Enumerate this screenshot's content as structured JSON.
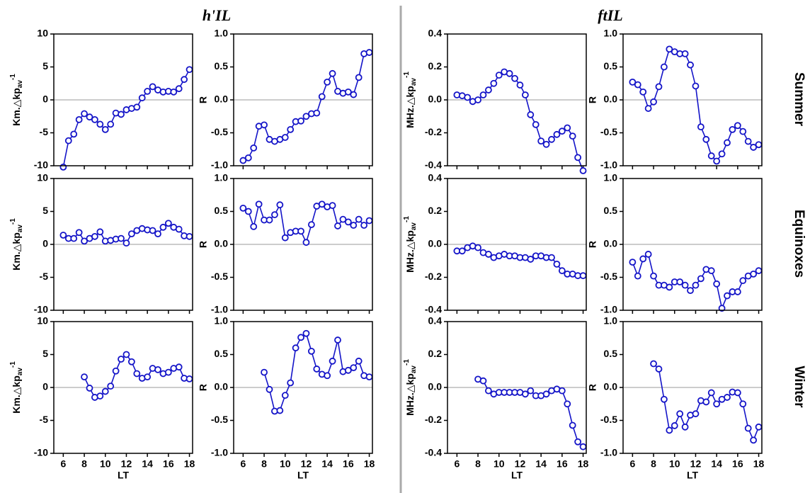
{
  "figure": {
    "column_titles": [
      "h'IL",
      "ftIL"
    ],
    "row_titles": [
      "Summer",
      "Equinoxes",
      "Winter"
    ]
  },
  "chart_data": [
    {
      "type": "line",
      "color": "#1414c8",
      "x": [
        6,
        6.5,
        7,
        7.5,
        8,
        8.5,
        9,
        9.5,
        10,
        10.5,
        11,
        11.5,
        12,
        12.5,
        13,
        13.5,
        14,
        14.5,
        15,
        15.5,
        16,
        16.5,
        17,
        17.5,
        18
      ],
      "values": [
        -10.2,
        -6.2,
        -5.2,
        -3.0,
        -2.1,
        -2.6,
        -3.0,
        -3.7,
        -4.5,
        -3.7,
        -2.0,
        -2.2,
        -1.5,
        -1.3,
        -1.1,
        0.3,
        1.3,
        2.0,
        1.5,
        1.2,
        1.3,
        1.2,
        1.7,
        3.1,
        4.6
      ],
      "ylabel": {
        "text": "Km.△kp",
        "sub": "av",
        "sup": "-1"
      },
      "ylim": [
        -10,
        10
      ],
      "yticks": [
        -10,
        -5,
        0,
        5,
        10
      ],
      "xlim": [
        5.1,
        18.3
      ],
      "xticks": [
        6,
        8,
        10,
        12,
        14,
        16,
        18
      ],
      "show_xtick_labels": false,
      "zero_line": true
    },
    {
      "type": "line",
      "color": "#1414c8",
      "x": [
        6,
        6.5,
        7,
        7.5,
        8,
        8.5,
        9,
        9.5,
        10,
        10.5,
        11,
        11.5,
        12,
        12.5,
        13,
        13.5,
        14,
        14.5,
        15,
        15.5,
        16,
        16.5,
        17,
        17.5,
        18
      ],
      "values": [
        -0.92,
        -0.88,
        -0.73,
        -0.4,
        -0.38,
        -0.6,
        -0.63,
        -0.6,
        -0.57,
        -0.45,
        -0.33,
        -0.32,
        -0.25,
        -0.21,
        -0.2,
        0.05,
        0.27,
        0.4,
        0.13,
        0.1,
        0.12,
        0.08,
        0.34,
        0.7,
        0.72
      ],
      "ylabel": "R",
      "ylim": [
        -1,
        1
      ],
      "yticks": [
        {
          "value": -1,
          "label": "-1.0"
        },
        -0.5,
        {
          "value": 0,
          "label": "0.0"
        },
        0.5,
        {
          "value": 1,
          "label": "1.0"
        }
      ],
      "xlim": [
        5.1,
        18.3
      ],
      "xticks": [
        6,
        8,
        10,
        12,
        14,
        16,
        18
      ],
      "show_xtick_labels": false,
      "zero_line": true
    },
    {
      "type": "line",
      "color": "#1414c8",
      "x": [
        6,
        6.5,
        7,
        7.5,
        8,
        8.5,
        9,
        9.5,
        10,
        10.5,
        11,
        11.5,
        12,
        12.5,
        13,
        13.5,
        14,
        14.5,
        15,
        15.5,
        16,
        16.5,
        17,
        17.5,
        18
      ],
      "values": [
        0.03,
        0.025,
        0.015,
        -0.01,
        0.0,
        0.03,
        0.06,
        0.1,
        0.15,
        0.17,
        0.16,
        0.13,
        0.09,
        0.03,
        -0.09,
        -0.15,
        -0.25,
        -0.27,
        -0.24,
        -0.21,
        -0.19,
        -0.17,
        -0.22,
        -0.35,
        -0.43
      ],
      "ylabel": {
        "text": "MHz.△kp",
        "sub": "av",
        "sup": "-1"
      },
      "ylim": [
        -0.4,
        0.4
      ],
      "yticks": [
        -0.4,
        -0.2,
        {
          "value": 0,
          "label": "0.0"
        },
        0.2,
        0.4
      ],
      "xlim": [
        5.1,
        18.3
      ],
      "xticks": [
        6,
        8,
        10,
        12,
        14,
        16,
        18
      ],
      "show_xtick_labels": false,
      "zero_line": true
    },
    {
      "type": "line",
      "color": "#1414c8",
      "x": [
        6,
        6.5,
        7,
        7.5,
        8,
        8.5,
        9,
        9.5,
        10,
        10.5,
        11,
        11.5,
        12,
        12.5,
        13,
        13.5,
        14,
        14.5,
        15,
        15.5,
        16,
        16.5,
        17,
        17.5,
        18
      ],
      "values": [
        0.27,
        0.23,
        0.12,
        -0.13,
        -0.03,
        0.2,
        0.5,
        0.77,
        0.73,
        0.7,
        0.7,
        0.53,
        0.21,
        -0.41,
        -0.6,
        -0.85,
        -0.93,
        -0.82,
        -0.65,
        -0.45,
        -0.39,
        -0.48,
        -0.63,
        -0.72,
        -0.68
      ],
      "ylabel": "R",
      "ylim": [
        -1,
        1
      ],
      "yticks": [
        {
          "value": -1,
          "label": "-1.0"
        },
        -0.5,
        {
          "value": 0,
          "label": "0.0"
        },
        0.5,
        {
          "value": 1,
          "label": "1.0"
        }
      ],
      "xlim": [
        5.1,
        18.3
      ],
      "xticks": [
        6,
        8,
        10,
        12,
        14,
        16,
        18
      ],
      "show_xtick_labels": false,
      "zero_line": true
    },
    {
      "type": "line",
      "color": "#1414c8",
      "x": [
        6,
        6.5,
        7,
        7.5,
        8,
        8.5,
        9,
        9.5,
        10,
        10.5,
        11,
        11.5,
        12,
        12.5,
        13,
        13.5,
        14,
        14.5,
        15,
        15.5,
        16,
        16.5,
        17,
        17.5,
        18
      ],
      "values": [
        1.4,
        0.9,
        0.9,
        1.8,
        0.5,
        0.9,
        1.2,
        1.9,
        0.5,
        0.6,
        0.8,
        0.9,
        0.2,
        1.6,
        2.1,
        2.4,
        2.2,
        2.1,
        1.6,
        2.6,
        3.2,
        2.6,
        2.3,
        1.3,
        1.2
      ],
      "ylabel": {
        "text": "Km.△kp",
        "sub": "av",
        "sup": "-1"
      },
      "ylim": [
        -10,
        10
      ],
      "yticks": [
        -10,
        -5,
        0,
        5,
        10
      ],
      "xlim": [
        5.1,
        18.3
      ],
      "xticks": [
        6,
        8,
        10,
        12,
        14,
        16,
        18
      ],
      "show_xtick_labels": false,
      "zero_line": true
    },
    {
      "type": "line",
      "color": "#1414c8",
      "x": [
        6,
        6.5,
        7,
        7.5,
        8,
        8.5,
        9,
        9.5,
        10,
        10.5,
        11,
        11.5,
        12,
        12.5,
        13,
        13.5,
        14,
        14.5,
        15,
        15.5,
        16,
        16.5,
        17,
        17.5,
        18
      ],
      "values": [
        0.55,
        0.5,
        0.27,
        0.61,
        0.37,
        0.37,
        0.45,
        0.6,
        0.1,
        0.18,
        0.2,
        0.2,
        0.03,
        0.3,
        0.58,
        0.61,
        0.57,
        0.59,
        0.28,
        0.38,
        0.34,
        0.29,
        0.38,
        0.29,
        0.36
      ],
      "ylabel": "R",
      "ylim": [
        -1,
        1
      ],
      "yticks": [
        {
          "value": -1,
          "label": "-1.0"
        },
        -0.5,
        {
          "value": 0,
          "label": "0.0"
        },
        0.5,
        {
          "value": 1,
          "label": "1.0"
        }
      ],
      "xlim": [
        5.1,
        18.3
      ],
      "xticks": [
        6,
        8,
        10,
        12,
        14,
        16,
        18
      ],
      "show_xtick_labels": false,
      "zero_line": true
    },
    {
      "type": "line",
      "color": "#1414c8",
      "x": [
        6,
        6.5,
        7,
        7.5,
        8,
        8.5,
        9,
        9.5,
        10,
        10.5,
        11,
        11.5,
        12,
        12.5,
        13,
        13.5,
        14,
        14.5,
        15,
        15.5,
        16,
        16.5,
        17,
        17.5,
        18
      ],
      "values": [
        -0.04,
        -0.04,
        -0.02,
        -0.01,
        -0.02,
        -0.05,
        -0.06,
        -0.08,
        -0.07,
        -0.06,
        -0.07,
        -0.07,
        -0.08,
        -0.08,
        -0.09,
        -0.07,
        -0.07,
        -0.08,
        -0.08,
        -0.12,
        -0.16,
        -0.18,
        -0.18,
        -0.19,
        -0.19
      ],
      "ylabel": {
        "text": "MHz.△kp",
        "sub": "av",
        "sup": "-1"
      },
      "ylim": [
        -0.4,
        0.4
      ],
      "yticks": [
        -0.4,
        -0.2,
        {
          "value": 0,
          "label": "0.0"
        },
        0.2,
        0.4
      ],
      "xlim": [
        5.1,
        18.3
      ],
      "xticks": [
        6,
        8,
        10,
        12,
        14,
        16,
        18
      ],
      "show_xtick_labels": false,
      "zero_line": true
    },
    {
      "type": "line",
      "color": "#1414c8",
      "x": [
        6,
        6.5,
        7,
        7.5,
        8,
        8.5,
        9,
        9.5,
        10,
        10.5,
        11,
        11.5,
        12,
        12.5,
        13,
        13.5,
        14,
        14.5,
        15,
        15.5,
        16,
        16.5,
        17,
        17.5,
        18
      ],
      "values": [
        -0.27,
        -0.48,
        -0.22,
        -0.15,
        -0.48,
        -0.62,
        -0.62,
        -0.65,
        -0.57,
        -0.57,
        -0.62,
        -0.7,
        -0.62,
        -0.52,
        -0.38,
        -0.4,
        -0.6,
        -0.97,
        -0.78,
        -0.72,
        -0.72,
        -0.55,
        -0.48,
        -0.45,
        -0.4
      ],
      "ylabel": "R",
      "ylim": [
        -1,
        1
      ],
      "yticks": [
        {
          "value": -1,
          "label": "-1.0"
        },
        -0.5,
        {
          "value": 0,
          "label": "0.0"
        },
        0.5,
        {
          "value": 1,
          "label": "1.0"
        }
      ],
      "xlim": [
        5.1,
        18.3
      ],
      "xticks": [
        6,
        8,
        10,
        12,
        14,
        16,
        18
      ],
      "show_xtick_labels": false,
      "zero_line": true
    },
    {
      "type": "line",
      "color": "#1414c8",
      "x": [
        6,
        6.5,
        7,
        7.5,
        8,
        8.5,
        9,
        9.5,
        10,
        10.5,
        11,
        11.5,
        12,
        12.5,
        13,
        13.5,
        14,
        14.5,
        15,
        15.5,
        16,
        16.5,
        17,
        17.5,
        18
      ],
      "values": [
        null,
        null,
        null,
        null,
        1.6,
        -0.1,
        -1.5,
        -1.3,
        -0.6,
        0.2,
        2.5,
        4.3,
        5.0,
        3.9,
        2.1,
        1.4,
        1.6,
        2.9,
        2.7,
        2.1,
        2.3,
        2.9,
        3.1,
        1.4,
        1.3
      ],
      "ylabel": {
        "text": "Km.△kp",
        "sub": "av",
        "sup": "-1"
      },
      "ylim": [
        -10,
        10
      ],
      "yticks": [
        -10,
        -5,
        0,
        5,
        10
      ],
      "xlim": [
        5.1,
        18.3
      ],
      "xticks": [
        6,
        8,
        10,
        12,
        14,
        16,
        18
      ],
      "show_xtick_labels": true,
      "xlabel": "LT",
      "zero_line": true
    },
    {
      "type": "line",
      "color": "#1414c8",
      "x": [
        6,
        6.5,
        7,
        7.5,
        8,
        8.5,
        9,
        9.5,
        10,
        10.5,
        11,
        11.5,
        12,
        12.5,
        13,
        13.5,
        14,
        14.5,
        15,
        15.5,
        16,
        16.5,
        17,
        17.5,
        18
      ],
      "values": [
        null,
        null,
        null,
        null,
        0.23,
        -0.03,
        -0.36,
        -0.35,
        -0.12,
        0.07,
        0.6,
        0.76,
        0.82,
        0.55,
        0.28,
        0.2,
        0.18,
        0.4,
        0.72,
        0.24,
        0.26,
        0.3,
        0.4,
        0.18,
        0.16
      ],
      "ylabel": "R",
      "ylim": [
        -1,
        1
      ],
      "yticks": [
        {
          "value": -1,
          "label": "-1.0"
        },
        -0.5,
        {
          "value": 0,
          "label": "0.0"
        },
        0.5,
        {
          "value": 1,
          "label": "1.0"
        }
      ],
      "xlim": [
        5.1,
        18.3
      ],
      "xticks": [
        6,
        8,
        10,
        12,
        14,
        16,
        18
      ],
      "show_xtick_labels": true,
      "xlabel": "LT",
      "zero_line": true
    },
    {
      "type": "line",
      "color": "#1414c8",
      "x": [
        6,
        6.5,
        7,
        7.5,
        8,
        8.5,
        9,
        9.5,
        10,
        10.5,
        11,
        11.5,
        12,
        12.5,
        13,
        13.5,
        14,
        14.5,
        15,
        15.5,
        16,
        16.5,
        17,
        17.5,
        18
      ],
      "values": [
        null,
        null,
        null,
        null,
        0.05,
        0.04,
        -0.02,
        -0.04,
        -0.03,
        -0.03,
        -0.03,
        -0.03,
        -0.03,
        -0.04,
        -0.02,
        -0.05,
        -0.05,
        -0.04,
        -0.02,
        -0.01,
        -0.02,
        -0.1,
        -0.23,
        -0.33,
        -0.36
      ],
      "ylabel": {
        "text": "MHz.△kp",
        "sub": "av",
        "sup": "-1"
      },
      "ylim": [
        -0.4,
        0.4
      ],
      "yticks": [
        -0.4,
        -0.2,
        {
          "value": 0,
          "label": "0.0"
        },
        0.2,
        0.4
      ],
      "xlim": [
        5.1,
        18.3
      ],
      "xticks": [
        6,
        8,
        10,
        12,
        14,
        16,
        18
      ],
      "show_xtick_labels": true,
      "xlabel": "LT",
      "zero_line": true
    },
    {
      "type": "line",
      "color": "#1414c8",
      "x": [
        6,
        6.5,
        7,
        7.5,
        8,
        8.5,
        9,
        9.5,
        10,
        10.5,
        11,
        11.5,
        12,
        12.5,
        13,
        13.5,
        14,
        14.5,
        15,
        15.5,
        16,
        16.5,
        17,
        17.5,
        18
      ],
      "values": [
        null,
        null,
        null,
        null,
        0.36,
        0.28,
        -0.18,
        -0.65,
        -0.58,
        -0.4,
        -0.6,
        -0.42,
        -0.4,
        -0.2,
        -0.22,
        -0.08,
        -0.25,
        -0.18,
        -0.15,
        -0.07,
        -0.08,
        -0.25,
        -0.62,
        -0.8,
        -0.6
      ],
      "ylabel": "R",
      "ylim": [
        -1,
        1
      ],
      "yticks": [
        {
          "value": -1,
          "label": "-1.0"
        },
        -0.5,
        {
          "value": 0,
          "label": "0.0"
        },
        0.5,
        {
          "value": 1,
          "label": "1.0"
        }
      ],
      "xlim": [
        5.1,
        18.3
      ],
      "xticks": [
        6,
        8,
        10,
        12,
        14,
        16,
        18
      ],
      "show_xtick_labels": true,
      "xlabel": "LT",
      "zero_line": true
    }
  ]
}
